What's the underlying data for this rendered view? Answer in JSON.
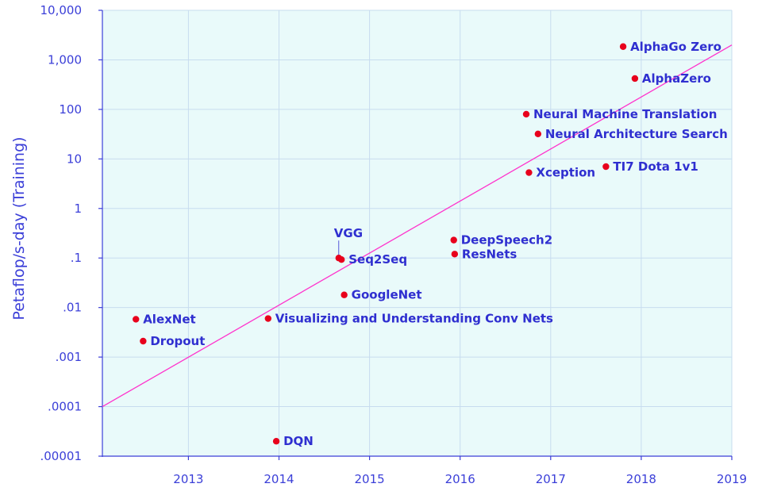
{
  "colors": {
    "plot_bg": "#e9fafa",
    "grid": "#c7dcef",
    "axis": "#3b3fd8",
    "text": "#2f2fd0",
    "point": "#e8001c",
    "trend": "#ff33cc"
  },
  "chart_data": {
    "type": "scatter",
    "title": "",
    "xlabel": "",
    "ylabel": "Petaflop/s-day (Training)",
    "xlim": [
      2012.05,
      2019
    ],
    "ylim": [
      1e-05,
      10000
    ],
    "yscale": "log",
    "grid": true,
    "x_ticks": [
      {
        "value": 2013,
        "label": "2013"
      },
      {
        "value": 2014,
        "label": "2014"
      },
      {
        "value": 2015,
        "label": "2015"
      },
      {
        "value": 2016,
        "label": "2016"
      },
      {
        "value": 2017,
        "label": "2017"
      },
      {
        "value": 2018,
        "label": "2018"
      },
      {
        "value": 2019,
        "label": "2019"
      }
    ],
    "y_ticks": [
      {
        "value": 1e-05,
        "label": ".00001"
      },
      {
        "value": 0.0001,
        "label": ".0001"
      },
      {
        "value": 0.001,
        "label": ".001"
      },
      {
        "value": 0.01,
        "label": ".01"
      },
      {
        "value": 0.1,
        "label": ".1"
      },
      {
        "value": 1,
        "label": "1"
      },
      {
        "value": 10,
        "label": "10"
      },
      {
        "value": 100,
        "label": "100"
      },
      {
        "value": 1000,
        "label": "1,000"
      },
      {
        "value": 10000,
        "label": "10,000"
      }
    ],
    "points": [
      {
        "name": "AlexNet",
        "x": 2012.42,
        "y": 0.0058
      },
      {
        "name": "Dropout",
        "x": 2012.5,
        "y": 0.0021
      },
      {
        "name": "DQN",
        "x": 2013.97,
        "y": 2e-05
      },
      {
        "name": "Visualizing and Understanding Conv Nets",
        "x": 2013.88,
        "y": 0.006
      },
      {
        "name": "GoogleNet",
        "x": 2014.72,
        "y": 0.018
      },
      {
        "name": "Seq2Seq",
        "x": 2014.69,
        "y": 0.093
      },
      {
        "name": "VGG",
        "x": 2014.66,
        "y": 0.1
      },
      {
        "name": "DeepSpeech2",
        "x": 2015.93,
        "y": 0.23
      },
      {
        "name": "ResNets",
        "x": 2015.94,
        "y": 0.12
      },
      {
        "name": "Xception",
        "x": 2016.76,
        "y": 5.3
      },
      {
        "name": "Neural Machine Translation",
        "x": 2016.73,
        "y": 80
      },
      {
        "name": "Neural Architecture Search",
        "x": 2016.86,
        "y": 32
      },
      {
        "name": "TI7 Dota 1v1",
        "x": 2017.61,
        "y": 7
      },
      {
        "name": "AlphaGo Zero",
        "x": 2017.8,
        "y": 1850
      },
      {
        "name": "AlphaZero",
        "x": 2017.93,
        "y": 420
      }
    ],
    "trendline": {
      "x": [
        2012.05,
        2019
      ],
      "y": [
        0.0001,
        2000
      ]
    }
  }
}
